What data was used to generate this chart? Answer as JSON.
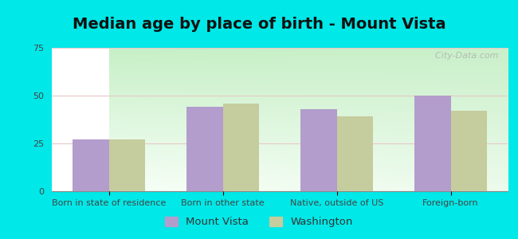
{
  "title": "Median age by place of birth - Mount Vista",
  "categories": [
    "Born in state of residence",
    "Born in other state",
    "Native, outside of US",
    "Foreign-born"
  ],
  "mount_vista_values": [
    27,
    44,
    43,
    50
  ],
  "washington_values": [
    27,
    46,
    39,
    42
  ],
  "mount_vista_color": "#b39dcc",
  "washington_color": "#c5cc9d",
  "bg_top_color": "#f0fff8",
  "bg_bottom_color": "#c8f0c8",
  "outer_background": "#00e8e8",
  "ylim": [
    0,
    75
  ],
  "yticks": [
    0,
    25,
    50,
    75
  ],
  "legend_labels": [
    "Mount Vista",
    "Washington"
  ],
  "bar_width": 0.32,
  "title_fontsize": 14,
  "tick_fontsize": 8,
  "legend_fontsize": 9.5,
  "watermark": "  City-Data.com"
}
